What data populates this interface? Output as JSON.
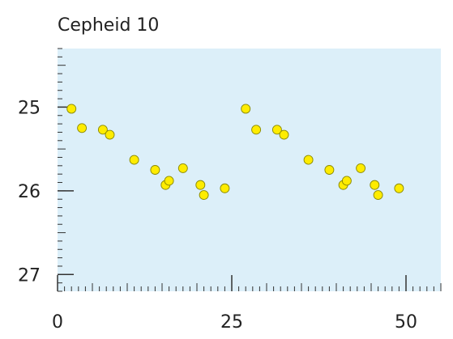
{
  "chart_data": {
    "type": "scatter",
    "title": "Cepheid 10",
    "xlabel": "",
    "ylabel": "",
    "xlim": [
      0,
      55
    ],
    "ylim": [
      24.3,
      27.2
    ],
    "y_inverted": true,
    "grid": false,
    "x_ticks": [
      0,
      25,
      50
    ],
    "x_tick_labels": [
      "0",
      "25",
      "50"
    ],
    "y_ticks": [
      25,
      26,
      27
    ],
    "y_tick_labels": [
      "25",
      "26",
      "27"
    ],
    "series": [
      {
        "x": [
          2.0,
          3.5,
          6.5,
          7.5,
          11.0,
          14.0,
          15.5,
          16.0,
          18.0,
          20.5,
          21.0,
          24.0,
          27.0,
          28.5,
          31.5,
          32.5,
          36.0,
          39.0,
          41.0,
          41.5,
          43.5,
          45.5,
          46.0,
          49.0
        ],
        "y": [
          25.02,
          25.25,
          25.27,
          25.33,
          25.63,
          25.75,
          25.93,
          25.88,
          25.73,
          25.93,
          26.05,
          25.97,
          25.02,
          25.27,
          25.27,
          25.33,
          25.63,
          25.75,
          25.93,
          25.88,
          25.73,
          25.93,
          26.05,
          25.97
        ]
      }
    ],
    "colors": {
      "plot_background": "#dceff9",
      "point_fill": "#ffec00",
      "point_stroke": "#8a8a00",
      "axis": "#333333",
      "tick_label": "#222222"
    }
  }
}
